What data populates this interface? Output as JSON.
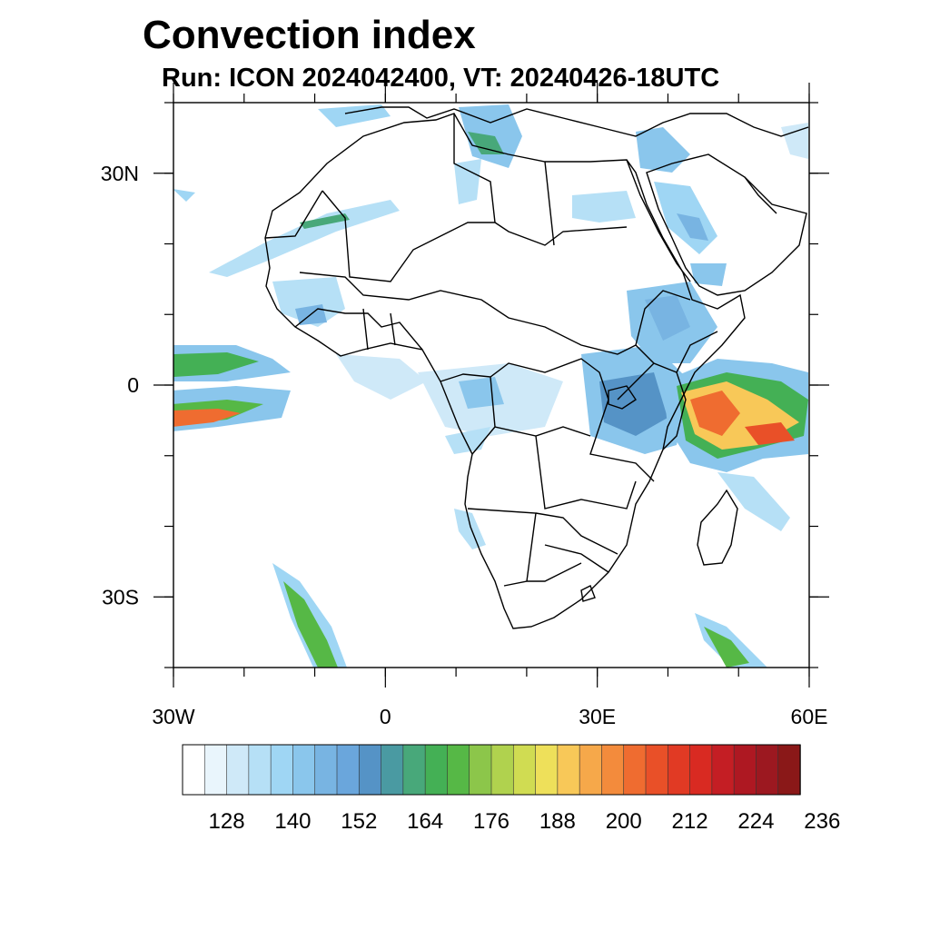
{
  "title": "Convection index",
  "subtitle": "Run: ICON 2024042400,  VT: 20240426-18UTC",
  "map": {
    "region": "Africa",
    "lon_range": [
      -30,
      60
    ],
    "lat_range": [
      -40,
      40
    ],
    "y_ticks": [
      {
        "lat": 30,
        "label": "30N"
      },
      {
        "lat": 0,
        "label": "0"
      },
      {
        "lat": -30,
        "label": "30S"
      }
    ],
    "x_ticks": [
      {
        "lon": -30,
        "label": "30W"
      },
      {
        "lon": 0,
        "label": "0"
      },
      {
        "lon": 30,
        "label": "30E"
      },
      {
        "lon": 60,
        "label": "60E"
      }
    ]
  },
  "colorbar": {
    "colors": [
      "#ffffff",
      "#e9f5fc",
      "#cfe9f8",
      "#b6e0f6",
      "#9fd6f4",
      "#8ac6ec",
      "#78b4e2",
      "#6aa6dc",
      "#5593c6",
      "#4a9aa2",
      "#48a87a",
      "#44b055",
      "#56b846",
      "#8cc64a",
      "#b0d24e",
      "#d0dc52",
      "#eee05a",
      "#f8c858",
      "#f6a84a",
      "#f38b3c",
      "#ef6c30",
      "#e95028",
      "#e13a24",
      "#d92a22",
      "#c41e24",
      "#ae1822",
      "#9c1820",
      "#8a1818"
    ],
    "labels": [
      "128",
      "140",
      "152",
      "164",
      "176",
      "188",
      "200",
      "212",
      "224",
      "236"
    ]
  }
}
